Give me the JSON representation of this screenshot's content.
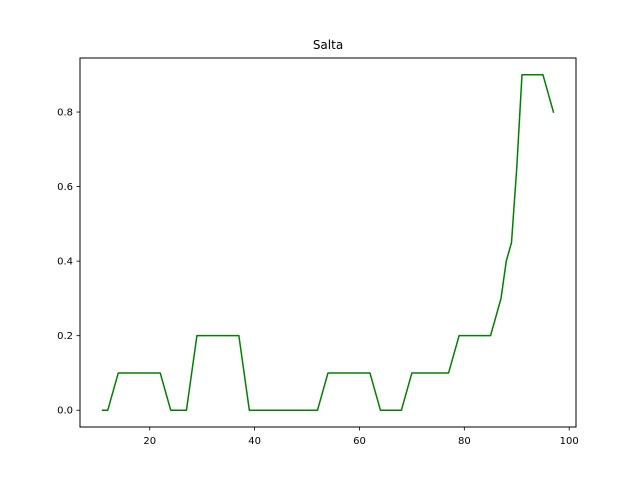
{
  "chart_data": {
    "type": "line",
    "title": "Salta",
    "xlabel": "",
    "ylabel": "",
    "xlim": [
      6.7,
      101.3
    ],
    "ylim": [
      -0.045,
      0.945
    ],
    "xticks": [
      20,
      40,
      60,
      80,
      100
    ],
    "yticks": [
      0.0,
      0.2,
      0.4,
      0.6,
      0.8
    ],
    "xtick_labels": [
      "20",
      "40",
      "60",
      "80",
      "100"
    ],
    "ytick_labels": [
      "0.0",
      "0.2",
      "0.4",
      "0.6",
      "0.8"
    ],
    "grid": false,
    "legend": "none",
    "series": [
      {
        "color": "#008000",
        "x": [
          11,
          12,
          14,
          16,
          18,
          20,
          22,
          24,
          25,
          27,
          29,
          31,
          33,
          35,
          37,
          39,
          41,
          43,
          45,
          47,
          49,
          51,
          52,
          54,
          56,
          58,
          60,
          62,
          64,
          66,
          68,
          70,
          72,
          74,
          76,
          77,
          79,
          81,
          83,
          85,
          87,
          88,
          89,
          90,
          91,
          93,
          95,
          97
        ],
        "y": [
          0.0,
          0.0,
          0.1,
          0.1,
          0.1,
          0.1,
          0.1,
          0.0,
          0.0,
          0.0,
          0.2,
          0.2,
          0.2,
          0.2,
          0.2,
          0.0,
          0.0,
          0.0,
          0.0,
          0.0,
          0.0,
          0.0,
          0.0,
          0.1,
          0.1,
          0.1,
          0.1,
          0.1,
          0.0,
          0.0,
          0.0,
          0.1,
          0.1,
          0.1,
          0.1,
          0.1,
          0.2,
          0.2,
          0.2,
          0.2,
          0.3,
          0.4,
          0.45,
          0.65,
          0.9,
          0.9,
          0.9,
          0.8
        ]
      }
    ]
  }
}
